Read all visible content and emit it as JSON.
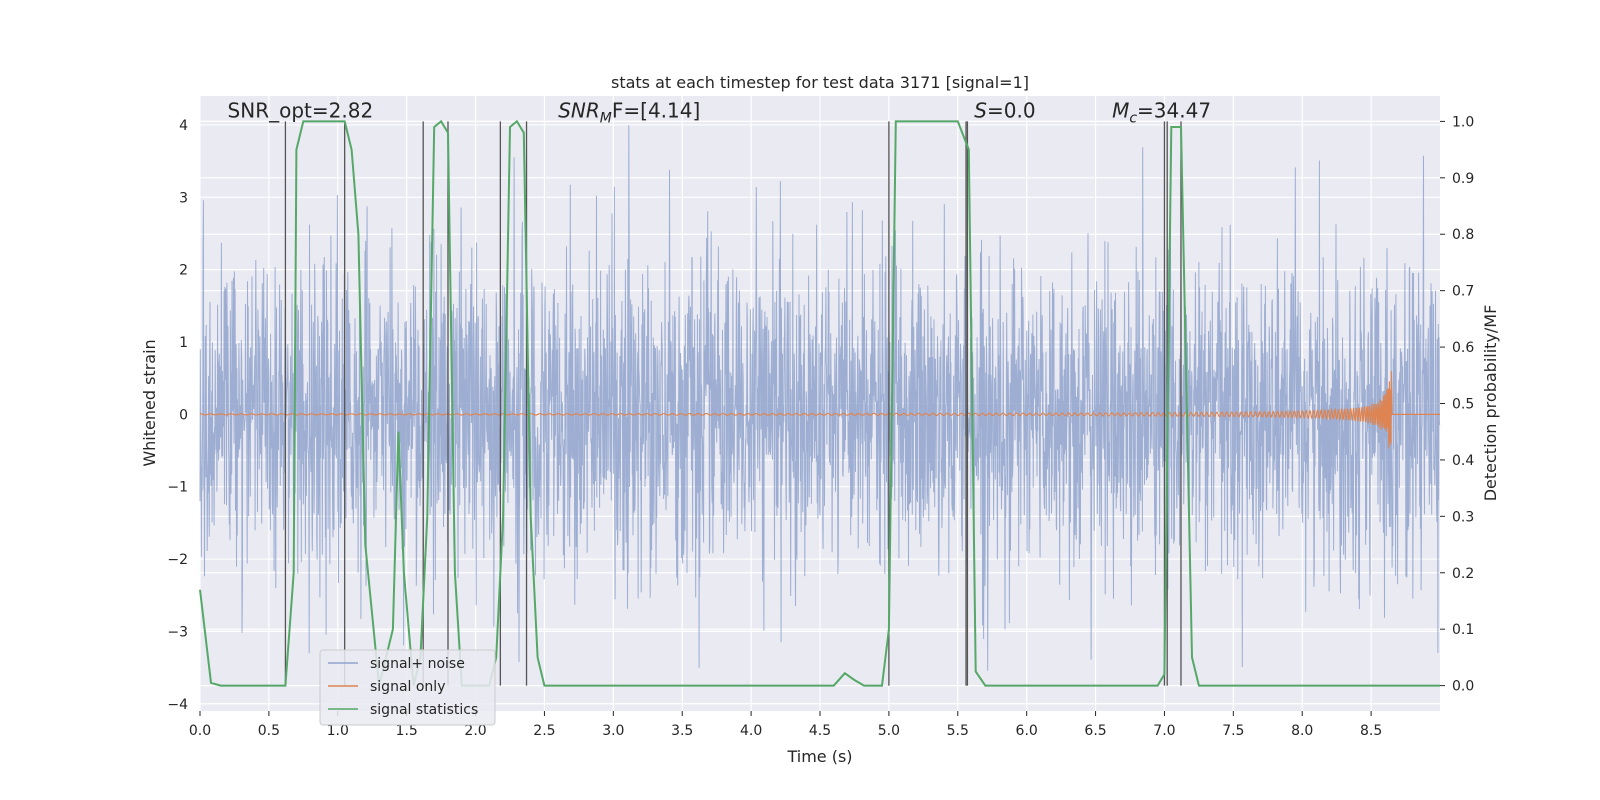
{
  "chart_data": {
    "type": "line",
    "title": "stats at each timestep for test data 3171 [signal=1]",
    "xlabel": "Time (s)",
    "ylabel": "Whitened strain",
    "y2label": "Detection probability/MF",
    "xlim": [
      0,
      9
    ],
    "ylim": [
      -4.1,
      4.4
    ],
    "y2lim": [
      -0.045,
      1.045
    ],
    "xticks": [
      "0.0",
      "0.5",
      "1.0",
      "1.5",
      "2.0",
      "2.5",
      "3.0",
      "3.5",
      "4.0",
      "4.5",
      "5.0",
      "5.5",
      "6.0",
      "6.5",
      "7.0",
      "7.5",
      "8.0",
      "8.5"
    ],
    "xtick_values": [
      0,
      0.5,
      1,
      1.5,
      2,
      2.5,
      3,
      3.5,
      4,
      4.5,
      5,
      5.5,
      6,
      6.5,
      7,
      7.5,
      8,
      8.5
    ],
    "yticks": [
      "−4",
      "−3",
      "−2",
      "−1",
      "0",
      "1",
      "2",
      "3",
      "4"
    ],
    "ytick_values": [
      -4,
      -3,
      -2,
      -1,
      0,
      1,
      2,
      3,
      4
    ],
    "y2ticks": [
      "0.0",
      "0.1",
      "0.2",
      "0.3",
      "0.4",
      "0.5",
      "0.6",
      "0.7",
      "0.8",
      "0.9",
      "1.0"
    ],
    "y2tick_values": [
      0,
      0.1,
      0.2,
      0.3,
      0.4,
      0.5,
      0.6,
      0.7,
      0.8,
      0.9,
      1.0
    ],
    "grid": true,
    "legend_position": "lower-left",
    "annotations": [
      {
        "text": "SNR_opt=2.82",
        "x": 0.2,
        "y": 4.1
      },
      {
        "text": "SNR",
        "sub": "M",
        "rest": "F=[4.14]",
        "x": 2.6,
        "y": 4.1
      },
      {
        "text": "S",
        "rest": "=0.0",
        "x": 5.62,
        "y": 4.1
      },
      {
        "text": "M",
        "sub": "c",
        "rest": "=34.47",
        "x": 6.62,
        "y": 4.1
      }
    ],
    "series": [
      {
        "name": "signal+ noise",
        "color": "#8fa3cc",
        "description": "white noise strain, dense band mostly within ±2.5, peaks to ±4"
      },
      {
        "name": "signal only",
        "color": "#dd8452",
        "chirp_end": 8.65,
        "chirp_peak": 0.75
      },
      {
        "name": "signal statistics",
        "color": "#55a868",
        "axis": "right",
        "x": [
          0.0,
          0.08,
          0.15,
          0.62,
          0.68,
          0.7,
          0.75,
          1.05,
          1.1,
          1.15,
          1.2,
          1.3,
          1.4,
          1.44,
          1.48,
          1.55,
          1.6,
          1.65,
          1.7,
          1.75,
          1.8,
          1.85,
          1.9,
          2.0,
          2.1,
          2.15,
          2.2,
          2.25,
          2.3,
          2.35,
          2.4,
          2.45,
          2.5,
          2.6,
          3.0,
          3.5,
          4.0,
          4.5,
          4.6,
          4.68,
          4.75,
          4.82,
          4.95,
          5.0,
          5.05,
          5.5,
          5.58,
          5.63,
          5.7,
          6.0,
          6.5,
          6.95,
          7.0,
          7.05,
          7.12,
          7.2,
          7.25,
          7.5,
          8.0,
          8.5,
          9.0
        ],
        "y": [
          0.17,
          0.005,
          0.0,
          0.0,
          0.2,
          0.95,
          1.0,
          1.0,
          0.95,
          0.8,
          0.25,
          0.0,
          0.1,
          0.45,
          0.2,
          0.0,
          0.05,
          0.3,
          0.99,
          1.0,
          0.98,
          0.2,
          0.0,
          0.0,
          0.0,
          0.05,
          0.3,
          0.99,
          1.0,
          0.98,
          0.3,
          0.05,
          0.0,
          0.0,
          0.0,
          0.0,
          0.0,
          0.0,
          0.0,
          0.022,
          0.01,
          0.0,
          0.0,
          0.1,
          1.0,
          1.0,
          0.95,
          0.025,
          0.0,
          0.0,
          0.0,
          0.0,
          0.02,
          0.99,
          0.99,
          0.05,
          0.0,
          0.0,
          0.0,
          0.0,
          0.0
        ]
      }
    ],
    "vertical_lines": {
      "color": "#555555",
      "x": [
        0.62,
        1.05,
        1.62,
        1.8,
        2.18,
        2.37,
        5.0,
        5.56,
        5.57,
        7.0,
        7.02,
        7.12
      ]
    }
  }
}
